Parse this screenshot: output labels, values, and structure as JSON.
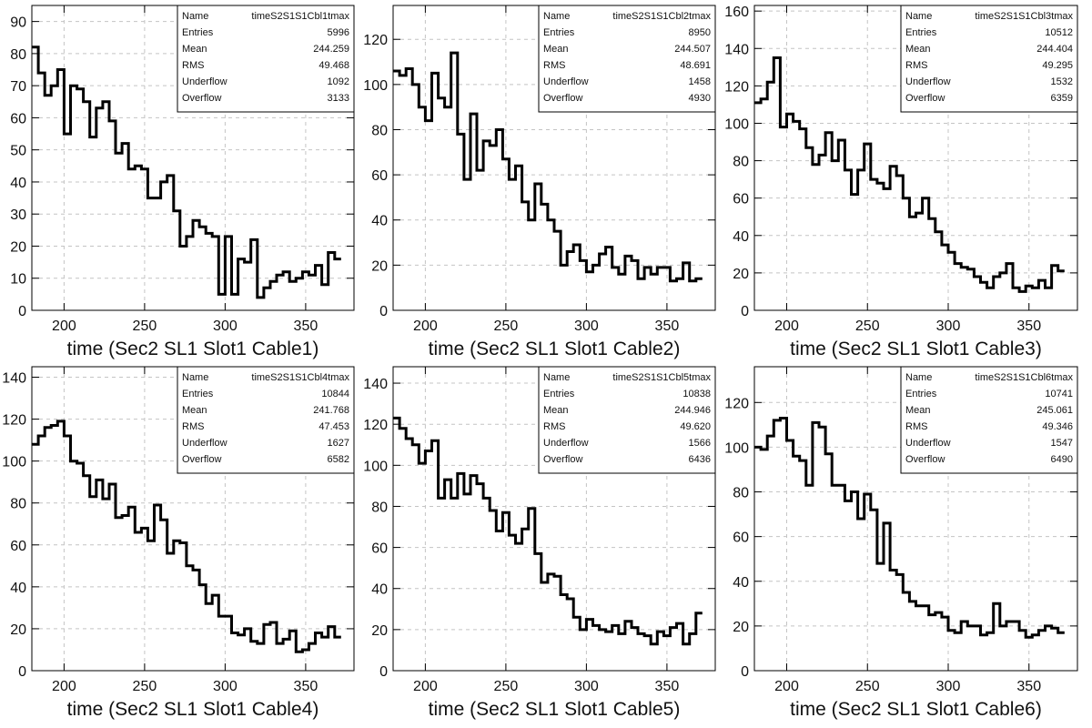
{
  "chart_data": [
    {
      "type": "histogram",
      "xlabel": "time (Sec2 SL1 Slot1 Cable1)",
      "xlim": [
        180,
        380
      ],
      "ylim": [
        0,
        95
      ],
      "yticks": [
        0,
        10,
        20,
        30,
        40,
        50,
        60,
        70,
        80,
        90
      ],
      "xticks": [
        200,
        250,
        300,
        350
      ],
      "bin_width": 4,
      "values": [
        82,
        74,
        67,
        70,
        75,
        55,
        70,
        69,
        65,
        54,
        63,
        65,
        59,
        49,
        52,
        44,
        45,
        44,
        35,
        35,
        40,
        42,
        31,
        20,
        23,
        28,
        26,
        24,
        23,
        5,
        23,
        5,
        16,
        15,
        22,
        4,
        7,
        9,
        11,
        12,
        9,
        10,
        12,
        11,
        14,
        8,
        18,
        16
      ],
      "stats": [
        {
          "label": "Name",
          "value": "timeS2S1S1Cbl1tmax"
        },
        {
          "label": "Entries",
          "value": "5996"
        },
        {
          "label": "Mean",
          "value": "244.259"
        },
        {
          "label": "RMS",
          "value": "49.468"
        },
        {
          "label": "Underflow",
          "value": "1092"
        },
        {
          "label": "Overflow",
          "value": "3133"
        }
      ]
    },
    {
      "type": "histogram",
      "xlabel": "time (Sec2 SL1 Slot1 Cable2)",
      "xlim": [
        180,
        380
      ],
      "ylim": [
        0,
        135
      ],
      "yticks": [
        0,
        20,
        40,
        60,
        80,
        100,
        120
      ],
      "xticks": [
        200,
        250,
        300,
        350
      ],
      "bin_width": 4,
      "values": [
        106,
        104,
        107,
        100,
        90,
        84,
        105,
        94,
        90,
        114,
        78,
        58,
        87,
        62,
        75,
        73,
        80,
        67,
        58,
        64,
        48,
        40,
        56,
        47,
        40,
        35,
        20,
        26,
        29,
        22,
        17,
        20,
        25,
        28,
        19,
        16,
        24,
        22,
        14,
        19,
        16,
        19,
        19,
        13,
        14,
        21,
        13,
        14
      ],
      "stats": [
        {
          "label": "Name",
          "value": "timeS2S1S1Cbl2tmax"
        },
        {
          "label": "Entries",
          "value": "8950"
        },
        {
          "label": "Mean",
          "value": "244.507"
        },
        {
          "label": "RMS",
          "value": "48.691"
        },
        {
          "label": "Underflow",
          "value": "1458"
        },
        {
          "label": "Overflow",
          "value": "4930"
        }
      ]
    },
    {
      "type": "histogram",
      "xlabel": "time (Sec2 SL1 Slot1 Cable3)",
      "xlim": [
        180,
        380
      ],
      "ylim": [
        0,
        163
      ],
      "yticks": [
        0,
        20,
        40,
        60,
        80,
        100,
        120,
        140,
        160
      ],
      "xticks": [
        200,
        250,
        300,
        350
      ],
      "bin_width": 4,
      "values": [
        111,
        113,
        122,
        135,
        98,
        105,
        101,
        97,
        87,
        78,
        83,
        95,
        80,
        91,
        75,
        62,
        75,
        89,
        70,
        68,
        65,
        77,
        72,
        60,
        50,
        52,
        60,
        49,
        42,
        35,
        31,
        25,
        23,
        22,
        18,
        15,
        12,
        18,
        20,
        25,
        12,
        10,
        13,
        12,
        16,
        12,
        24,
        21
      ],
      "stats": [
        {
          "label": "Name",
          "value": "timeS2S1S1Cbl3tmax"
        },
        {
          "label": "Entries",
          "value": "10512"
        },
        {
          "label": "Mean",
          "value": "244.404"
        },
        {
          "label": "RMS",
          "value": "49.295"
        },
        {
          "label": "Underflow",
          "value": "1532"
        },
        {
          "label": "Overflow",
          "value": "6359"
        }
      ]
    },
    {
      "type": "histogram",
      "xlabel": "time (Sec2 SL1 Slot1 Cable4)",
      "xlim": [
        180,
        380
      ],
      "ylim": [
        0,
        145
      ],
      "yticks": [
        0,
        20,
        40,
        60,
        80,
        100,
        120,
        140
      ],
      "xticks": [
        200,
        250,
        300,
        350
      ],
      "bin_width": 4,
      "values": [
        108,
        112,
        116,
        117,
        119,
        112,
        100,
        99,
        93,
        83,
        91,
        82,
        89,
        73,
        74,
        78,
        66,
        68,
        62,
        79,
        72,
        56,
        62,
        61,
        50,
        48,
        41,
        32,
        36,
        26,
        26,
        18,
        17,
        20,
        14,
        13,
        22,
        23,
        13,
        15,
        19,
        9,
        10,
        13,
        18,
        16,
        21,
        16
      ],
      "stats": [
        {
          "label": "Name",
          "value": "timeS2S1S1Cbl4tmax"
        },
        {
          "label": "Entries",
          "value": "10844"
        },
        {
          "label": "Mean",
          "value": "241.768"
        },
        {
          "label": "RMS",
          "value": "47.453"
        },
        {
          "label": "Underflow",
          "value": "1627"
        },
        {
          "label": "Overflow",
          "value": "6582"
        }
      ]
    },
    {
      "type": "histogram",
      "xlabel": "time (Sec2 SL1 Slot1 Cable5)",
      "xlim": [
        180,
        380
      ],
      "ylim": [
        0,
        148
      ],
      "yticks": [
        0,
        20,
        40,
        60,
        80,
        100,
        120,
        140
      ],
      "xticks": [
        200,
        250,
        300,
        350
      ],
      "bin_width": 4,
      "values": [
        123,
        118,
        113,
        110,
        101,
        107,
        112,
        84,
        93,
        84,
        96,
        86,
        95,
        91,
        84,
        78,
        68,
        77,
        66,
        62,
        69,
        79,
        57,
        43,
        47,
        46,
        37,
        35,
        26,
        20,
        25,
        22,
        20,
        19,
        22,
        18,
        24,
        21,
        18,
        17,
        13,
        19,
        17,
        21,
        23,
        13,
        18,
        28
      ],
      "stats": [
        {
          "label": "Name",
          "value": "timeS2S1S1Cbl5tmax"
        },
        {
          "label": "Entries",
          "value": "10838"
        },
        {
          "label": "Mean",
          "value": "244.946"
        },
        {
          "label": "RMS",
          "value": "49.620"
        },
        {
          "label": "Underflow",
          "value": "1566"
        },
        {
          "label": "Overflow",
          "value": "6436"
        }
      ]
    },
    {
      "type": "histogram",
      "xlabel": "time (Sec2 SL1 Slot1 Cable6)",
      "xlim": [
        180,
        380
      ],
      "ylim": [
        0,
        136
      ],
      "yticks": [
        0,
        20,
        40,
        60,
        80,
        100,
        120
      ],
      "xticks": [
        200,
        250,
        300,
        350
      ],
      "bin_width": 4,
      "values": [
        100,
        99,
        105,
        112,
        113,
        103,
        96,
        94,
        83,
        111,
        109,
        97,
        83,
        83,
        76,
        80,
        68,
        79,
        72,
        48,
        66,
        45,
        43,
        35,
        31,
        29,
        29,
        25,
        26,
        24,
        18,
        17,
        22,
        20,
        20,
        16,
        17,
        30,
        20,
        22,
        22,
        18,
        15,
        16,
        18,
        20,
        19,
        17
      ],
      "stats": [
        {
          "label": "Name",
          "value": "timeS2S1S1Cbl6tmax"
        },
        {
          "label": "Entries",
          "value": "10741"
        },
        {
          "label": "Mean",
          "value": "245.061"
        },
        {
          "label": "RMS",
          "value": "49.346"
        },
        {
          "label": "Underflow",
          "value": "1547"
        },
        {
          "label": "Overflow",
          "value": "6490"
        }
      ]
    }
  ]
}
